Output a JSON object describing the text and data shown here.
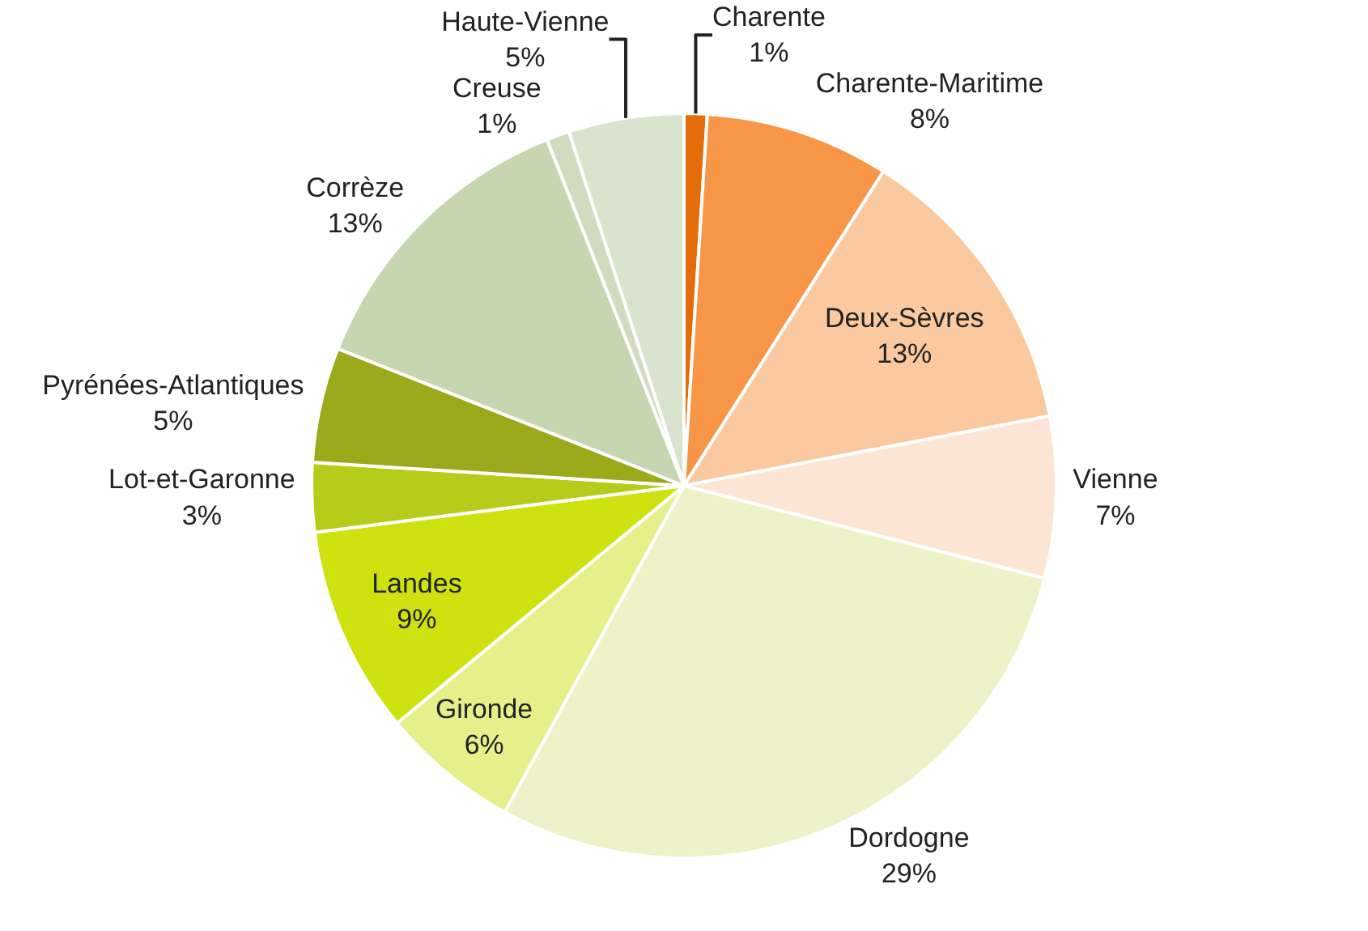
{
  "chart_data": {
    "type": "pie",
    "categories": [
      "Charente",
      "Charente-Maritime",
      "Deux-Sèvres",
      "Vienne",
      "Dordogne",
      "Gironde",
      "Landes",
      "Lot-et-Garonne",
      "Pyrénées-Atlantiques",
      "Corrèze",
      "Creuse",
      "Haute-Vienne"
    ],
    "values": [
      1,
      8,
      13,
      7,
      29,
      6,
      9,
      3,
      5,
      13,
      1,
      5
    ],
    "value_labels": [
      "1%",
      "8%",
      "13%",
      "7%",
      "29%",
      "6%",
      "9%",
      "3%",
      "5%",
      "13%",
      "1%",
      "5%"
    ],
    "colors": [
      "#e46c0a",
      "#f79646",
      "#fac9a0",
      "#fde5d5",
      "#eef2c8",
      "#e6f08a",
      "#cde20e",
      "#b6cc1a",
      "#9aaa1a",
      "#c6d6b0",
      "#d0dcc0",
      "#d9e4cf"
    ],
    "legend": false
  }
}
